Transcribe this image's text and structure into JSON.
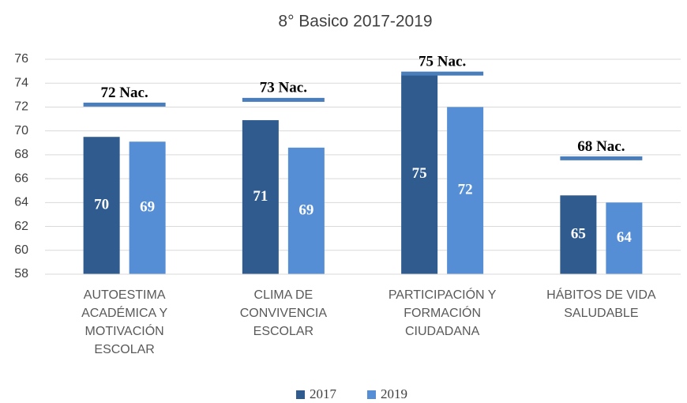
{
  "chart_data": {
    "type": "bar",
    "title": "8° Basico 2017-2019",
    "categories": [
      "AUTOESTIMA ACADÉMICA Y MOTIVACIÓN ESCOLAR",
      "CLIMA DE CONVIVENCIA ESCOLAR",
      "PARTICIPACIÓN Y FORMACIÓN CIUDADANA",
      "HÁBITOS DE VIDA SALUDABLE"
    ],
    "series": [
      {
        "name": "2017",
        "color": "#2f5b8f",
        "values": [
          69.5,
          70.9,
          74.7,
          64.6
        ],
        "value_labels": [
          "70",
          "71",
          "75",
          "65"
        ]
      },
      {
        "name": "2019",
        "color": "#558ed5",
        "values": [
          69.1,
          68.6,
          72.0,
          64.0
        ],
        "value_labels": [
          "69",
          "69",
          "72",
          "64"
        ]
      }
    ],
    "reference_lines": {
      "color": "#4a7ebb",
      "values": [
        72.2,
        72.6,
        74.8,
        67.7
      ],
      "value_labels": [
        "72 Nac.",
        "73 Nac.",
        "75 Nac.",
        "68 Nac."
      ]
    },
    "ylim": [
      58,
      76
    ],
    "yticks": [
      58,
      60,
      62,
      64,
      66,
      68,
      70,
      72,
      74,
      76
    ],
    "grid": true,
    "legend": "bottom"
  }
}
